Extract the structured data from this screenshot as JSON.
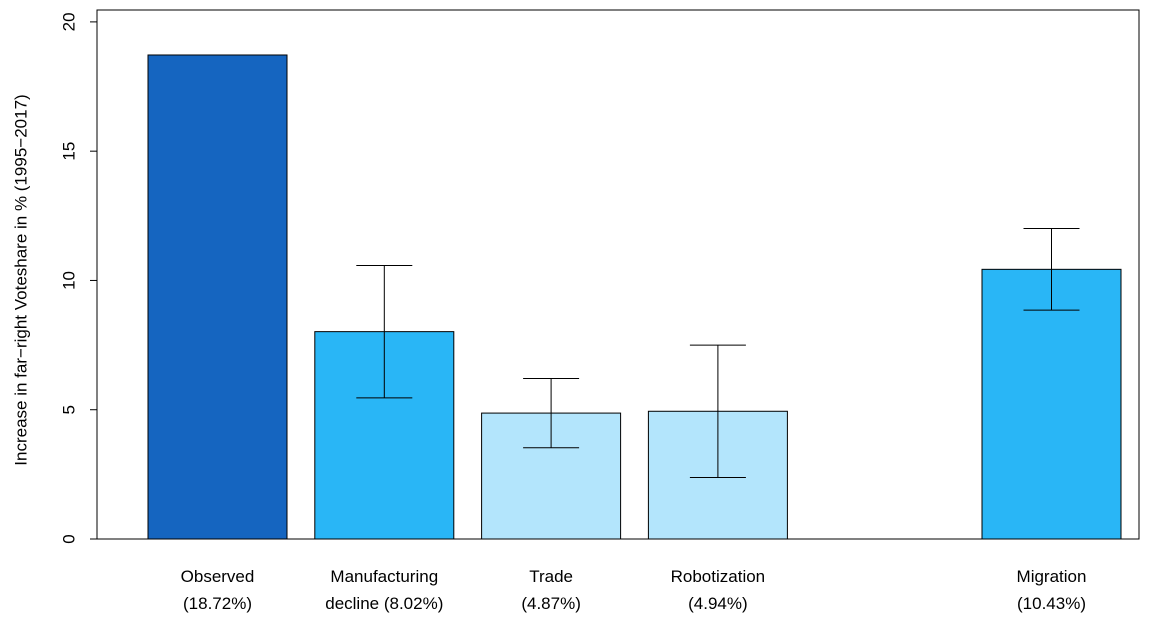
{
  "chart_data": {
    "type": "bar",
    "y_label": "Increase in far−right Voteshare in % (1995−2017)",
    "categories": [
      "Observed\n(18.72%)",
      "Manufacturing\ndecline (8.02%)",
      "Trade\n(4.87%)",
      "Robotization\n(4.94%)",
      null,
      "Migration\n(10.43%)"
    ],
    "values": [
      18.72,
      8.02,
      4.87,
      4.94,
      0,
      10.43
    ],
    "errors": [
      null,
      2.56,
      1.34,
      2.56,
      null,
      1.58
    ],
    "colors": [
      "#1565c0",
      "#29b6f6",
      "#b3e5fc",
      "#b3e5fc",
      "#b3e5fc",
      "#29b6f6"
    ],
    "ylim": [
      0,
      20.46
    ],
    "yticks": [
      0,
      5,
      10,
      15,
      20
    ]
  }
}
